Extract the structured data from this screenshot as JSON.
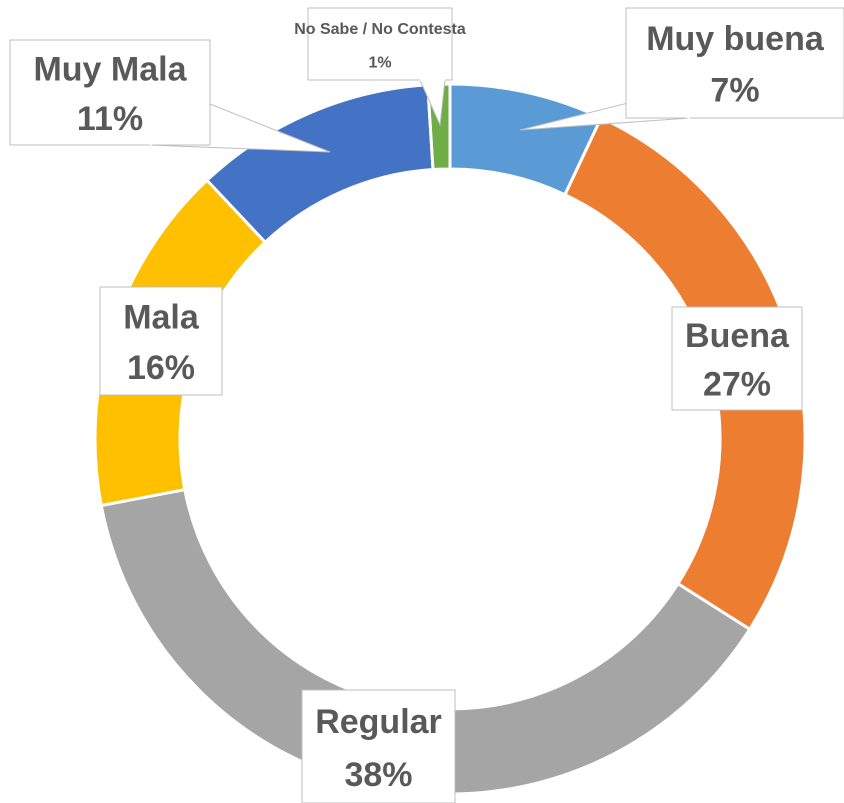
{
  "chart_data": {
    "type": "pie",
    "donut": true,
    "categories": [
      "Muy buena",
      "Buena",
      "Regular",
      "Mala",
      "Muy Mala",
      "No Sabe / No Contesta"
    ],
    "values": [
      7,
      27,
      38,
      16,
      11,
      1
    ],
    "value_labels": [
      "7%",
      "27%",
      "38%",
      "16%",
      "11%",
      "1%"
    ],
    "colors": [
      "#5b9bd5",
      "#ed7d31",
      "#a5a5a5",
      "#ffc000",
      "#4472c4",
      "#70ad47"
    ]
  }
}
